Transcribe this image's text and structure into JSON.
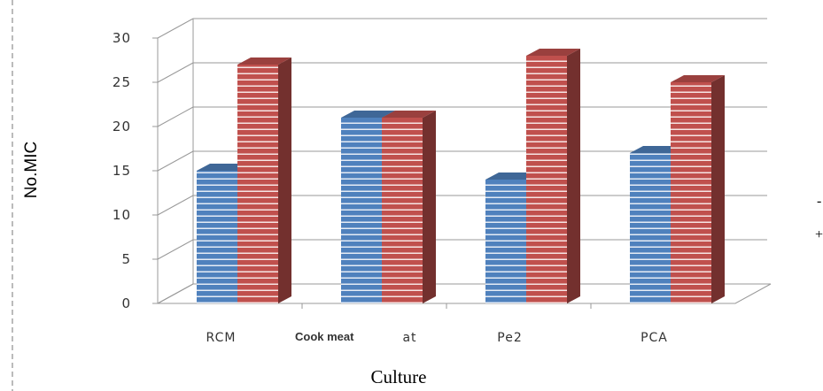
{
  "chart_data": {
    "type": "bar",
    "categories": [
      "RCM",
      "Cook meat",
      "Pe2",
      "PCA"
    ],
    "category_overlay_label": "Cook meat",
    "series": [
      {
        "name": "-",
        "values": [
          15,
          21,
          14,
          17
        ],
        "color": "#4f81bd"
      },
      {
        "name": "+",
        "values": [
          27,
          21,
          28,
          25
        ],
        "color": "#c0504d"
      }
    ],
    "title": "",
    "xlabel": "Culture",
    "ylabel": "No.MIC",
    "ylim": [
      0,
      30
    ],
    "yticks": [
      0,
      5,
      10,
      15,
      20,
      25,
      30
    ],
    "grid": true,
    "legend": "right",
    "style": "3d-clustered-column"
  }
}
